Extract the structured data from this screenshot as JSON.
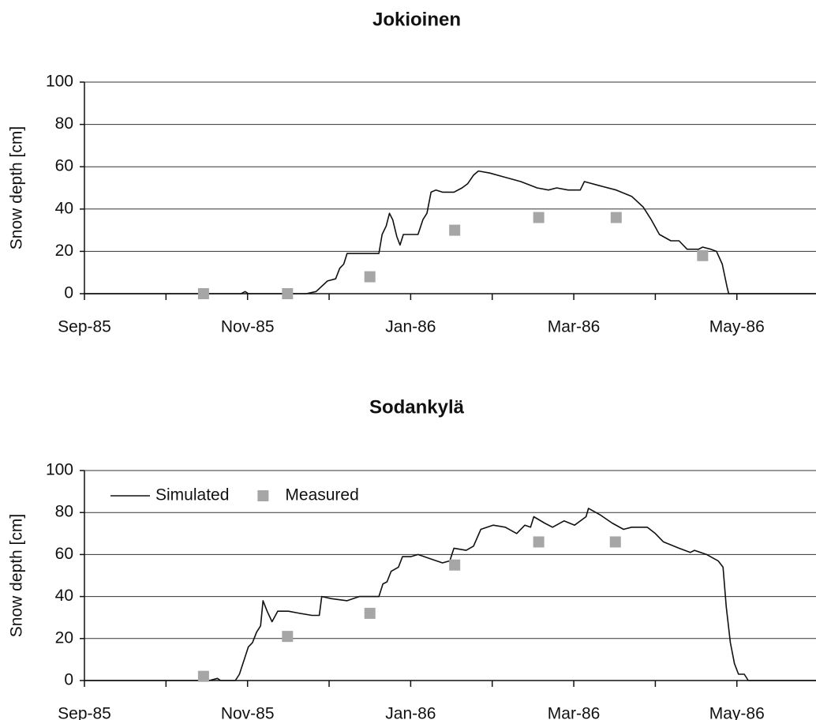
{
  "chart_data": [
    {
      "type": "line",
      "title": "Jokioinen",
      "ylabel": "Snow depth [cm]",
      "xlim": [
        0,
        8.97
      ],
      "xticks": [
        {
          "value": 0,
          "label": "Sep-85"
        },
        {
          "value": 2,
          "label": "Nov-85"
        },
        {
          "value": 4,
          "label": "Jan-86"
        },
        {
          "value": 6,
          "label": "Mar-86"
        },
        {
          "value": 8,
          "label": "May-86"
        }
      ],
      "xminorticks": [
        1,
        3,
        5,
        7
      ],
      "ylim": [
        0,
        100
      ],
      "yticks": [
        0,
        20,
        40,
        60,
        80,
        100
      ],
      "grid": true,
      "legend": false,
      "series": [
        {
          "mark": "line",
          "color": "#111111",
          "x": [
            0,
            1.92,
            1.97,
            2.01,
            2.72,
            2.84,
            2.98,
            3.08,
            3.13,
            3.18,
            3.22,
            3.32,
            3.42,
            3.51,
            3.61,
            3.65,
            3.7,
            3.74,
            3.78,
            3.83,
            3.87,
            3.91,
            4.09,
            4.15,
            4.2,
            4.25,
            4.31,
            4.39,
            4.53,
            4.63,
            4.7,
            4.77,
            4.83,
            4.97,
            5.16,
            5.35,
            5.55,
            5.69,
            5.79,
            5.93,
            6.08,
            6.13,
            6.32,
            6.52,
            6.71,
            6.85,
            6.95,
            7.05,
            7.19,
            7.29,
            7.39,
            7.53,
            7.58,
            7.68,
            7.75,
            7.82,
            7.88,
            7.9,
            8.97
          ],
          "values": [
            0,
            0,
            1,
            0,
            0,
            1,
            6,
            7,
            12,
            14,
            19,
            19,
            19,
            19,
            19,
            28,
            32,
            38,
            35,
            27,
            23,
            28,
            28,
            35,
            38,
            48,
            49,
            48,
            48,
            50,
            52,
            56,
            58,
            57,
            55,
            53,
            50,
            49,
            50,
            49,
            49,
            53,
            51,
            49,
            46,
            41,
            35,
            28,
            25,
            25,
            21,
            21,
            22,
            21,
            20,
            14,
            3,
            0,
            0
          ]
        },
        {
          "mark": "square",
          "color": "#a6a6a6",
          "x": [
            1.46,
            2.49,
            3.5,
            4.54,
            5.57,
            6.52,
            7.58
          ],
          "values": [
            0,
            0,
            8,
            30,
            36,
            36,
            18
          ]
        }
      ]
    },
    {
      "type": "line",
      "title": "Sodankylä",
      "ylabel": "Snow depth [cm]",
      "xlim": [
        0,
        8.97
      ],
      "xticks": [
        {
          "value": 0,
          "label": "Sep-85"
        },
        {
          "value": 2,
          "label": "Nov-85"
        },
        {
          "value": 4,
          "label": "Jan-86"
        },
        {
          "value": 6,
          "label": "Mar-86"
        },
        {
          "value": 8,
          "label": "May-86"
        }
      ],
      "xminorticks": [
        1,
        3,
        5,
        7
      ],
      "ylim": [
        0,
        100
      ],
      "yticks": [
        0,
        20,
        40,
        60,
        80,
        100
      ],
      "grid": true,
      "legend": "upper left",
      "series": [
        {
          "name": "Simulated",
          "mark": "line",
          "color": "#111111",
          "x": [
            0,
            1.53,
            1.63,
            1.67,
            1.85,
            1.9,
            2.01,
            2.06,
            2.11,
            2.16,
            2.19,
            2.24,
            2.3,
            2.37,
            2.5,
            2.64,
            2.79,
            2.88,
            2.91,
            3.03,
            3.22,
            3.37,
            3.51,
            3.61,
            3.66,
            3.71,
            3.76,
            3.85,
            3.9,
            4.0,
            4.09,
            4.24,
            4.39,
            4.48,
            4.53,
            4.68,
            4.77,
            4.86,
            5.01,
            5.16,
            5.3,
            5.4,
            5.47,
            5.51,
            5.64,
            5.74,
            5.88,
            6.01,
            6.15,
            6.18,
            6.32,
            6.47,
            6.61,
            6.71,
            6.9,
            7.0,
            7.1,
            7.29,
            7.43,
            7.48,
            7.63,
            7.77,
            7.83,
            7.87,
            7.92,
            7.97,
            8.02,
            8.09,
            8.14,
            8.97
          ],
          "values": [
            0,
            0,
            1,
            0,
            0,
            3,
            16,
            18,
            23,
            26,
            38,
            33,
            28,
            33,
            33,
            32,
            31,
            31,
            40,
            39,
            38,
            40,
            40,
            40,
            46,
            47,
            52,
            54,
            59,
            59,
            60,
            58,
            56,
            57,
            63,
            62,
            64,
            72,
            74,
            73,
            70,
            74,
            73,
            78,
            75,
            73,
            76,
            74,
            78,
            82,
            79,
            75,
            72,
            73,
            73,
            70,
            66,
            63,
            61,
            62,
            60,
            57,
            54,
            35,
            18,
            8,
            3,
            3,
            0,
            0
          ]
        },
        {
          "name": "Measured",
          "mark": "square",
          "color": "#a6a6a6",
          "x": [
            1.46,
            2.49,
            3.5,
            4.54,
            5.57,
            6.51
          ],
          "values": [
            2,
            21,
            32,
            55,
            66,
            66
          ]
        }
      ]
    }
  ]
}
